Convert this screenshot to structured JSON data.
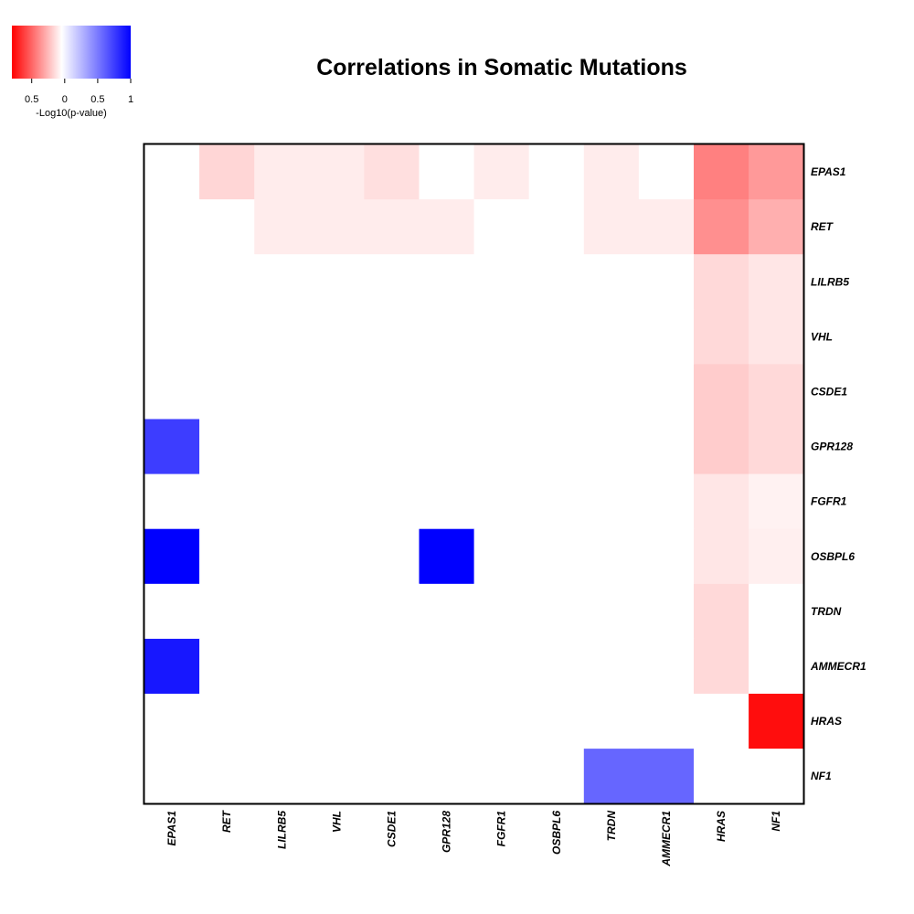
{
  "chart_data": {
    "type": "heatmap",
    "title": "Correlations in Somatic Mutations",
    "genes": [
      "EPAS1",
      "RET",
      "LILRB5",
      "VHL",
      "CSDE1",
      "GPR128",
      "FGFR1",
      "OSBPL6",
      "TRDN",
      "AMMECR1",
      "HRAS",
      "NF1"
    ],
    "value_meaning": "signed -Log10(p-value); positive (blue) = co-occurrence, negative (red) = mutual exclusivity",
    "value_range": [
      -0.8,
      1
    ],
    "colors": {
      "negative": "#ff0000",
      "zero": "#ffffff",
      "positive": "#0000ff"
    },
    "matrix": [
      [
        0,
        -0.13,
        -0.06,
        -0.06,
        -0.1,
        0,
        -0.06,
        0,
        -0.06,
        0,
        -0.4,
        -0.32
      ],
      [
        0,
        0,
        -0.06,
        -0.06,
        -0.06,
        -0.06,
        0,
        0,
        -0.06,
        -0.06,
        -0.35,
        -0.25
      ],
      [
        0,
        0,
        0,
        0,
        0,
        0,
        0,
        0,
        0,
        0,
        -0.12,
        -0.08
      ],
      [
        0,
        0,
        0,
        0,
        0,
        0,
        0,
        0,
        0,
        0,
        -0.12,
        -0.08
      ],
      [
        0,
        0,
        0,
        0,
        0,
        0,
        0,
        0,
        0,
        0,
        -0.16,
        -0.12
      ],
      [
        0.76,
        0,
        0,
        0,
        0,
        0,
        0,
        0,
        0,
        0,
        -0.16,
        -0.12
      ],
      [
        0,
        0,
        0,
        0,
        0,
        0,
        0,
        0,
        0,
        0,
        -0.08,
        -0.04
      ],
      [
        1.0,
        0,
        0,
        0,
        0,
        1.0,
        0,
        0,
        0,
        0,
        -0.08,
        -0.05
      ],
      [
        0,
        0,
        0,
        0,
        0,
        0,
        0,
        0,
        0,
        0,
        -0.12,
        0
      ],
      [
        0.91,
        0,
        0,
        0,
        0,
        0,
        0,
        0,
        0,
        0,
        -0.12,
        0
      ],
      [
        0,
        0,
        0,
        0,
        0,
        0,
        0,
        0,
        0,
        0,
        0,
        -0.76
      ],
      [
        0,
        0,
        0,
        0,
        0,
        0,
        0,
        0,
        0.6,
        0.6,
        0,
        0
      ]
    ],
    "legend": {
      "label": "-Log10(p-value)",
      "ticks": [
        "0.5",
        "0",
        "0.5",
        "1"
      ],
      "tick_values": [
        -0.5,
        0,
        0.5,
        1
      ],
      "range": [
        -0.8,
        1
      ]
    }
  }
}
